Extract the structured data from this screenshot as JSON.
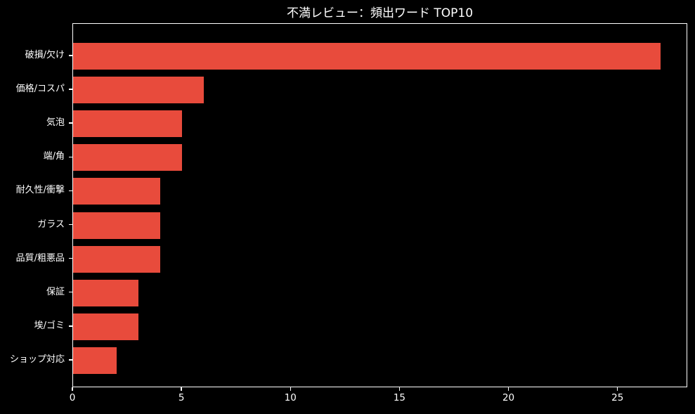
{
  "window": {
    "title": "不満レビュー：頻出ワード TOP10"
  },
  "colors": {
    "background": "#000000",
    "bar": "#e84b3c",
    "text": "#ffffff",
    "spine": "#ffffff"
  },
  "chart_data": {
    "type": "bar",
    "orientation": "horizontal",
    "title": "不満レビュー：頻出ワード TOP10",
    "categories": [
      "破損/欠け",
      "価格/コスパ",
      "気泡",
      "端/角",
      "耐久性/衝撃",
      "ガラス",
      "品質/粗悪品",
      "保証",
      "埃/ゴミ",
      "ショップ対応"
    ],
    "values": [
      27,
      6,
      5,
      5,
      4,
      4,
      4,
      3,
      3,
      2
    ],
    "xlabel": "",
    "ylabel": "",
    "xlim": [
      0,
      28.2
    ],
    "xticks": [
      0,
      5,
      10,
      15,
      20,
      25
    ],
    "grid": false,
    "legend": null,
    "bar_color": "#e84b3c",
    "plot_background": "#000000"
  }
}
